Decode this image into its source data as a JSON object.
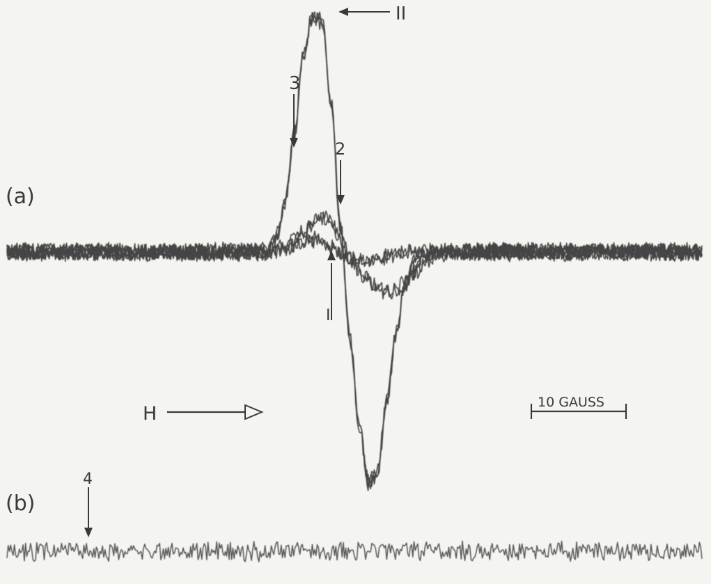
{
  "chart_data": [
    {
      "panel_label": "(a)",
      "type": "line",
      "xlabel": "H",
      "scale_bar": "10 GAUSS",
      "scale_bar_gauss": 10,
      "xlim": [
        0,
        75
      ],
      "ylim": [
        -1.05,
        1.05
      ],
      "series": [
        {
          "x": [
            0,
            28,
            29,
            30,
            31,
            32,
            33,
            34,
            35,
            36,
            37,
            38,
            39,
            40,
            41,
            42,
            43,
            44,
            45,
            46,
            47,
            48,
            75
          ],
          "y": [
            0,
            0,
            0.06,
            0.2,
            0.5,
            0.84,
            0.99,
            0.97,
            0.62,
            0.1,
            -0.36,
            -0.72,
            -0.97,
            -0.92,
            -0.62,
            -0.34,
            -0.14,
            -0.04,
            -0.01,
            0,
            0,
            0,
            0
          ]
        },
        {
          "x": [
            0,
            28,
            30,
            31,
            32,
            33,
            34,
            35,
            36,
            37,
            38,
            39,
            40,
            41,
            42,
            43,
            44,
            45,
            46,
            47,
            48,
            75
          ],
          "y": [
            0,
            0,
            0.02,
            0.05,
            0.08,
            0.12,
            0.14,
            0.13,
            0.05,
            -0.03,
            -0.08,
            -0.12,
            -0.15,
            -0.17,
            -0.16,
            -0.13,
            -0.09,
            -0.05,
            -0.02,
            0,
            0,
            0
          ]
        },
        {
          "x": [
            0,
            28,
            30,
            31,
            32,
            33,
            34,
            35,
            36,
            37,
            38,
            39,
            40,
            41,
            42,
            43,
            44,
            45,
            46,
            47,
            48,
            75
          ],
          "y": [
            0,
            0,
            0.01,
            0.02,
            0.04,
            0.05,
            0.04,
            0.02,
            0,
            -0.02,
            -0.03,
            -0.04,
            -0.03,
            -0.02,
            -0.01,
            0,
            0,
            0,
            0,
            0,
            0,
            0
          ]
        }
      ],
      "annotations": [
        {
          "text": "II",
          "x": 34.5,
          "y": 1.0
        },
        {
          "text": "3",
          "x": 31.5,
          "y": 0.55
        },
        {
          "text": "2",
          "x": 35.5,
          "y": 0.15
        },
        {
          "text": "I",
          "x": 34.5,
          "y": 0.05
        }
      ]
    },
    {
      "panel_label": "(b)",
      "type": "line",
      "xlim": [
        0,
        75
      ],
      "ylim": [
        -1,
        1
      ],
      "series": [
        {
          "x": [
            0,
            75
          ],
          "y": [
            0,
            0
          ]
        }
      ],
      "annotations": [
        {
          "text": "4",
          "x": 9,
          "y": 0
        }
      ]
    }
  ]
}
